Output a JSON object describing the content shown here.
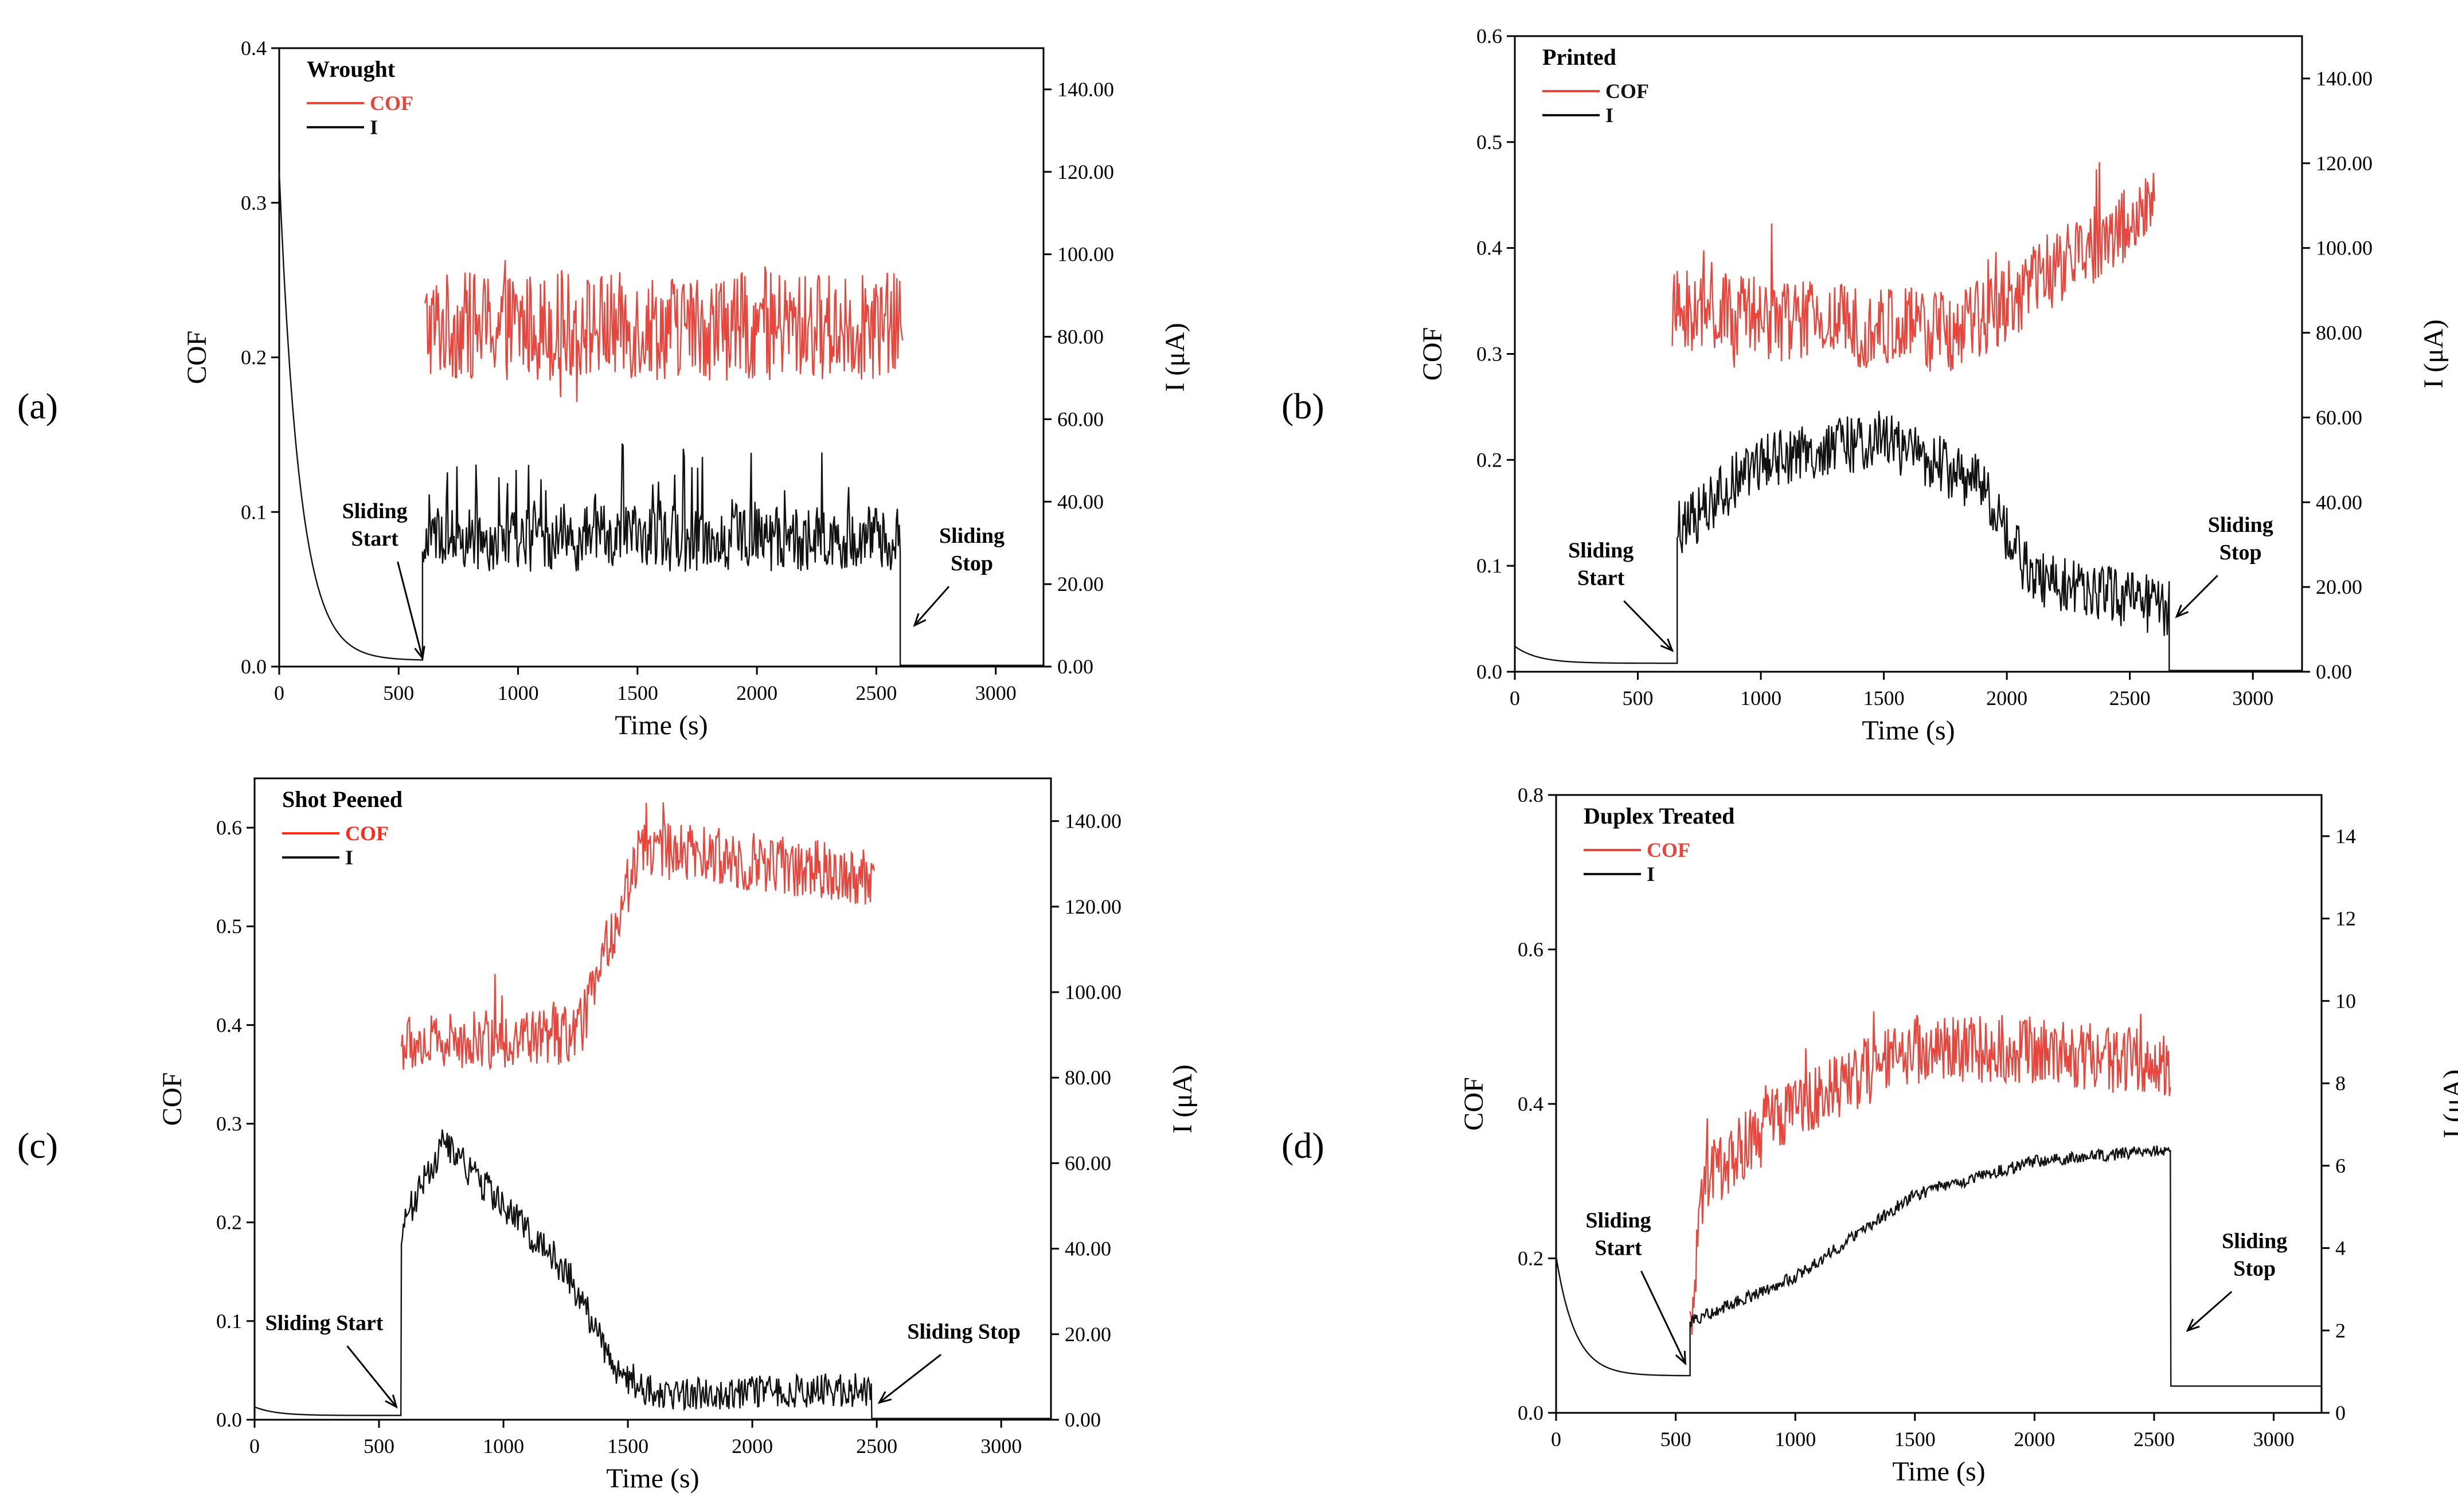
{
  "chart_data": [
    {
      "type": "line",
      "panel_label": "(a)",
      "title": "Wrought",
      "xlabel": "Time (s)",
      "ylabel": "COF",
      "y2label": "I (μA)",
      "xlim": [
        0,
        3200
      ],
      "ylim": [
        0,
        0.4
      ],
      "y2lim": [
        0,
        150
      ],
      "xticks": [
        0,
        500,
        1000,
        1500,
        2000,
        2500,
        3000
      ],
      "yticks": [
        "0.0",
        "0.1",
        "0.2",
        "0.3",
        "0.4"
      ],
      "y2ticks": [
        "0.00",
        "20.00",
        "40.00",
        "60.00",
        "80.00",
        "100.00",
        "120.00",
        "140.00"
      ],
      "legend": [
        {
          "name": "COF",
          "color": "#e8463c",
          "label_color": "#e8463c"
        },
        {
          "name": "I",
          "color": "#111111",
          "label_color": "#111111"
        }
      ],
      "series": [
        {
          "name": "COF",
          "axis": "left",
          "start": 610,
          "end": 2610,
          "base": 0.22,
          "noise": 0.035
        },
        {
          "name": "I",
          "axis": "right",
          "segments": [
            {
              "x0": 0,
              "x1": 600,
              "kind": "decay",
              "from": 120,
              "to": 1.5
            },
            {
              "x0": 600,
              "x1": 2600,
              "kind": "noisy",
              "base": 31,
              "noise": 8
            },
            {
              "x0": 2600,
              "x1": 3200,
              "kind": "flat",
              "value": 0.3
            }
          ]
        }
      ],
      "annotations": [
        {
          "lines": [
            "Sliding",
            "Start"
          ],
          "x": 400,
          "y": 36,
          "arrow_to_x": 600,
          "arrow_to_y": 2,
          "axis": "right"
        },
        {
          "lines": [
            "Sliding",
            "Stop"
          ],
          "x": 2900,
          "y": 30,
          "arrow_to_x": 2660,
          "arrow_to_y": 10,
          "axis": "right"
        }
      ]
    },
    {
      "type": "line",
      "panel_label": "(b)",
      "title": "Printed",
      "xlabel": "Time (s)",
      "ylabel": "COF",
      "y2label": "I (μA)",
      "xlim": [
        0,
        3200
      ],
      "ylim": [
        0,
        0.6
      ],
      "y2lim": [
        0,
        150
      ],
      "xticks": [
        0,
        500,
        1000,
        1500,
        2000,
        2500,
        3000
      ],
      "yticks": [
        "0.0",
        "0.1",
        "0.2",
        "0.3",
        "0.4",
        "0.5",
        "0.6"
      ],
      "y2ticks": [
        "0.00",
        "20.00",
        "40.00",
        "60.00",
        "80.00",
        "100.00",
        "120.00",
        "140.00"
      ],
      "legend": [
        {
          "name": "COF",
          "color": "#e8463c",
          "label_color": "#111111"
        },
        {
          "name": "I",
          "color": "#111111",
          "label_color": "#111111"
        }
      ],
      "series": [
        {
          "name": "COF",
          "axis": "left",
          "start": 640,
          "end": 2600,
          "base": 0.33,
          "noise": 0.04,
          "trend": [
            [
              640,
              0.34
            ],
            [
              1800,
              0.32
            ],
            [
              2600,
              0.44
            ]
          ]
        },
        {
          "name": "I",
          "axis": "right",
          "segments": [
            {
              "x0": 0,
              "x1": 660,
              "kind": "decay",
              "from": 6,
              "to": 2
            },
            {
              "x0": 660,
              "x1": 2660,
              "kind": "noisy-trend",
              "noise": 7,
              "trend": [
                [
                  660,
                  33
                ],
                [
                  1000,
                  50
                ],
                [
                  1500,
                  55
                ],
                [
                  1900,
                  44
                ],
                [
                  2100,
                  22
                ],
                [
                  2660,
                  15
                ]
              ]
            },
            {
              "x0": 2660,
              "x1": 3200,
              "kind": "flat",
              "value": 0.3
            }
          ]
        }
      ],
      "annotations": [
        {
          "lines": [
            "Sliding",
            "Start"
          ],
          "x": 350,
          "y": 27,
          "arrow_to_x": 640,
          "arrow_to_y": 5,
          "axis": "right"
        },
        {
          "lines": [
            "Sliding",
            "Stop"
          ],
          "x": 2950,
          "y": 33,
          "arrow_to_x": 2690,
          "arrow_to_y": 13,
          "axis": "right"
        }
      ]
    },
    {
      "type": "line",
      "panel_label": "(c)",
      "title": "Shot Peened",
      "xlabel": "Time (s)",
      "ylabel": "COF",
      "y2label": "I (μA)",
      "xlim": [
        0,
        3200
      ],
      "ylim": [
        0,
        0.65
      ],
      "y2lim": [
        0,
        150
      ],
      "xticks": [
        0,
        500,
        1000,
        1500,
        2000,
        2500,
        3000
      ],
      "yticks": [
        "0.0",
        "0.1",
        "0.2",
        "0.3",
        "0.4",
        "0.5",
        "0.6"
      ],
      "y2ticks": [
        "0.00",
        "20.00",
        "40.00",
        "60.00",
        "80.00",
        "100.00",
        "120.00",
        "140.00"
      ],
      "legend": [
        {
          "name": "COF",
          "color": "#ff2a1a",
          "label_color": "#ff2a1a"
        },
        {
          "name": "I",
          "color": "#111111",
          "label_color": "#111111"
        }
      ],
      "series": [
        {
          "name": "COF",
          "axis": "left",
          "start": 590,
          "end": 2490,
          "base": 0.38,
          "noise": 0.03,
          "trend": [
            [
              590,
              0.38
            ],
            [
              1300,
              0.39
            ],
            [
              1550,
              0.58
            ],
            [
              2490,
              0.55
            ]
          ]
        },
        {
          "name": "I",
          "axis": "right",
          "segments": [
            {
              "x0": 0,
              "x1": 590,
              "kind": "decay",
              "from": 3,
              "to": 1
            },
            {
              "x0": 590,
              "x1": 2480,
              "kind": "noisy-trend",
              "noise": 4,
              "trend": [
                [
                  590,
                  45
                ],
                [
                  760,
                  65
                ],
                [
                  1000,
                  50
                ],
                [
                  1250,
                  35
                ],
                [
                  1450,
                  12
                ],
                [
                  1600,
                  6
                ],
                [
                  2480,
                  7
                ]
              ]
            },
            {
              "x0": 2480,
              "x1": 3200,
              "kind": "flat",
              "value": 0.3
            }
          ]
        }
      ],
      "annotations": [
        {
          "lines": [
            "Sliding Start"
          ],
          "x": 280,
          "y": 21,
          "arrow_to_x": 570,
          "arrow_to_y": 3,
          "axis": "right"
        },
        {
          "lines": [
            "Sliding Stop"
          ],
          "x": 2850,
          "y": 19,
          "arrow_to_x": 2510,
          "arrow_to_y": 4,
          "axis": "right"
        }
      ]
    },
    {
      "type": "line",
      "panel_label": "(d)",
      "title": "Duplex Treated",
      "xlabel": "Time (s)",
      "ylabel": "COF",
      "y2label": "I (μA)",
      "xlim": [
        0,
        3200
      ],
      "ylim": [
        0,
        0.8
      ],
      "y2lim": [
        0,
        15
      ],
      "xticks": [
        0,
        500,
        1000,
        1500,
        2000,
        2500,
        3000
      ],
      "yticks": [
        "0.0",
        "0.2",
        "0.4",
        "0.6",
        "0.8"
      ],
      "y2ticks": [
        "0",
        "2",
        "4",
        "6",
        "8",
        "10",
        "12",
        "14"
      ],
      "legend": [
        {
          "name": "COF",
          "color": "#e8463c",
          "label_color": "#e8463c"
        },
        {
          "name": "I",
          "color": "#111111",
          "label_color": "#111111"
        }
      ],
      "series": [
        {
          "name": "COF",
          "axis": "left",
          "start": 560,
          "end": 2570,
          "base": 0.45,
          "noise": 0.045,
          "trend": [
            [
              560,
              0.1
            ],
            [
              620,
              0.3
            ],
            [
              1000,
              0.4
            ],
            [
              1500,
              0.47
            ],
            [
              2000,
              0.47
            ],
            [
              2570,
              0.45
            ]
          ]
        },
        {
          "name": "I",
          "axis": "right",
          "segments": [
            {
              "x0": 0,
              "x1": 560,
              "kind": "decay",
              "from": 3.8,
              "to": 0.9
            },
            {
              "x0": 560,
              "x1": 2570,
              "kind": "noisy-trend",
              "noise": 0.15,
              "trend": [
                [
                  560,
                  2.2
                ],
                [
                  1000,
                  3.3
                ],
                [
                  1500,
                  5.3
                ],
                [
                  2000,
                  6.1
                ],
                [
                  2570,
                  6.4
                ]
              ]
            },
            {
              "x0": 2570,
              "x1": 3200,
              "kind": "flat",
              "value": 0.65
            }
          ]
        }
      ],
      "annotations": [
        {
          "lines": [
            "Sliding",
            "Start"
          ],
          "x": 260,
          "y": 4.5,
          "arrow_to_x": 540,
          "arrow_to_y": 1.2,
          "axis": "right"
        },
        {
          "lines": [
            "Sliding",
            "Stop"
          ],
          "x": 2920,
          "y": 4,
          "arrow_to_x": 2640,
          "arrow_to_y": 2,
          "axis": "right"
        }
      ]
    }
  ]
}
